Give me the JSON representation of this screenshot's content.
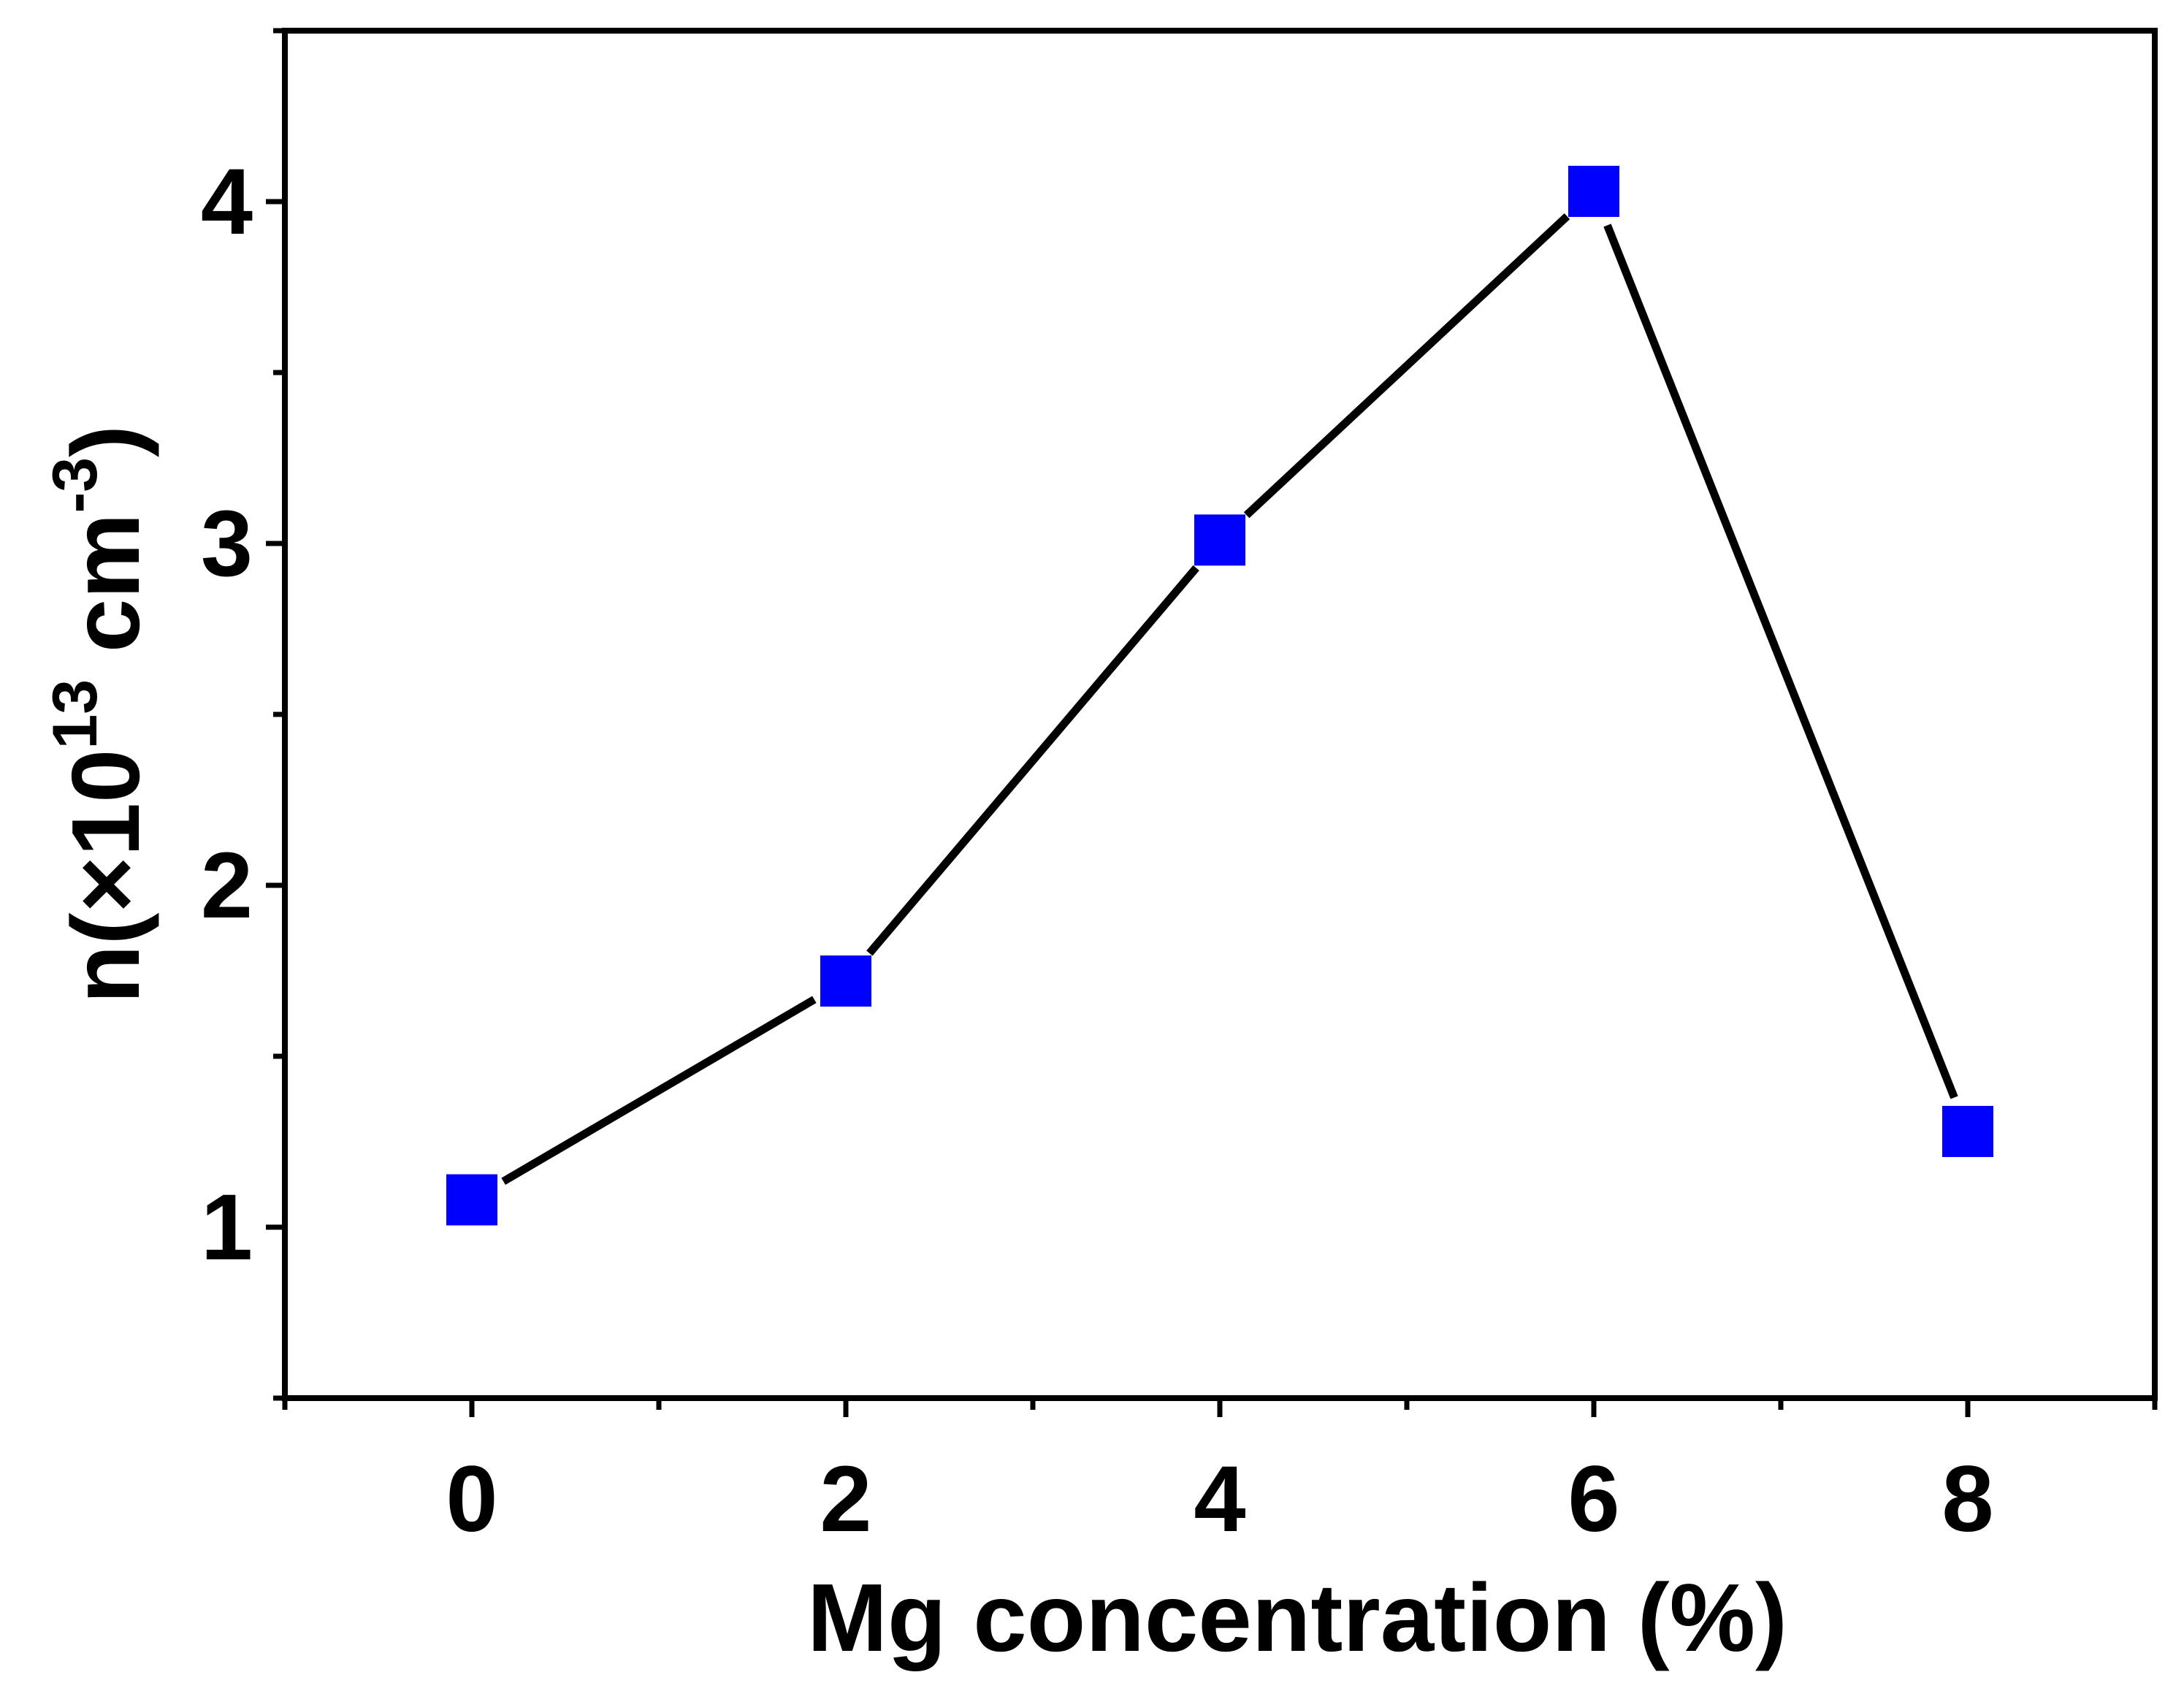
{
  "chart_data": {
    "type": "line",
    "title": "",
    "xlabel": "Mg concentration (%)",
    "ylabel": {
      "prefix": "n(×10",
      "exp1": "13",
      "mid": " cm",
      "exp2": "-3",
      "suffix": ")"
    },
    "xlim": [
      -1,
      9
    ],
    "ylim": [
      0.5,
      4.5
    ],
    "xticks": [
      0,
      2,
      4,
      6,
      8
    ],
    "xticks_minor": [
      -1,
      1,
      3,
      5,
      7,
      9
    ],
    "yticks": [
      1,
      2,
      3,
      4
    ],
    "yticks_minor": [
      0.5,
      1.5,
      2.5,
      3.5,
      4.5
    ],
    "grid": false,
    "series": [
      {
        "name": "n",
        "x": [
          0,
          2,
          4,
          6,
          8
        ],
        "y": [
          1.08,
          1.72,
          3.01,
          4.03,
          1.28
        ],
        "marker": "square",
        "marker_color": "#0000ff",
        "line_color": "#000000"
      }
    ]
  }
}
